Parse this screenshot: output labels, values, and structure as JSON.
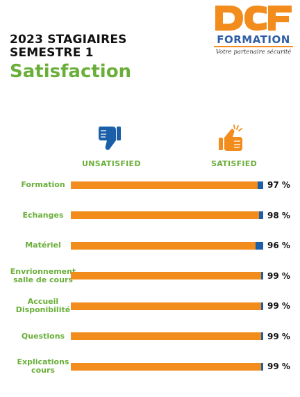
{
  "header": {
    "line1": "2023 STAGIAIRES",
    "line2": "SEMESTRE 1",
    "title": "Satisfaction"
  },
  "logo": {
    "letters": "DCF",
    "word": "FORMATION",
    "tagline": "Votre partenaire sécurité"
  },
  "icons": {
    "unsatisfied": "thumbs-down-icon",
    "satisfied": "thumbs-up-icon"
  },
  "colors": {
    "satisfied": "#F28C1C",
    "unsatisfied": "#1B5FA8",
    "label_green": "#6AAF3A",
    "title_green": "#6AAF3A",
    "logo_blue": "#2E5EA5",
    "logo_orange": "#F28C1C"
  },
  "chart_data": {
    "type": "bar",
    "orientation": "horizontal-stacked",
    "series_labels": {
      "unsatisfied": "UNSATISFIED",
      "satisfied": "SATISFIED"
    },
    "categories": [
      "Formation",
      "Echanges",
      "Matériel",
      "Envrionnement\nsalle de cours",
      "Accueil\nDisponibilité",
      "Questions",
      "Explications\ncours"
    ],
    "satisfied": [
      97,
      98,
      96,
      99,
      99,
      99,
      99
    ],
    "unsatisfied": [
      3,
      2,
      4,
      1,
      1,
      1,
      1
    ],
    "value_labels": [
      "97 %",
      "98 %",
      "96 %",
      "99 %",
      "99 %",
      "99 %",
      "99 %"
    ],
    "xlim": [
      0,
      100
    ]
  }
}
